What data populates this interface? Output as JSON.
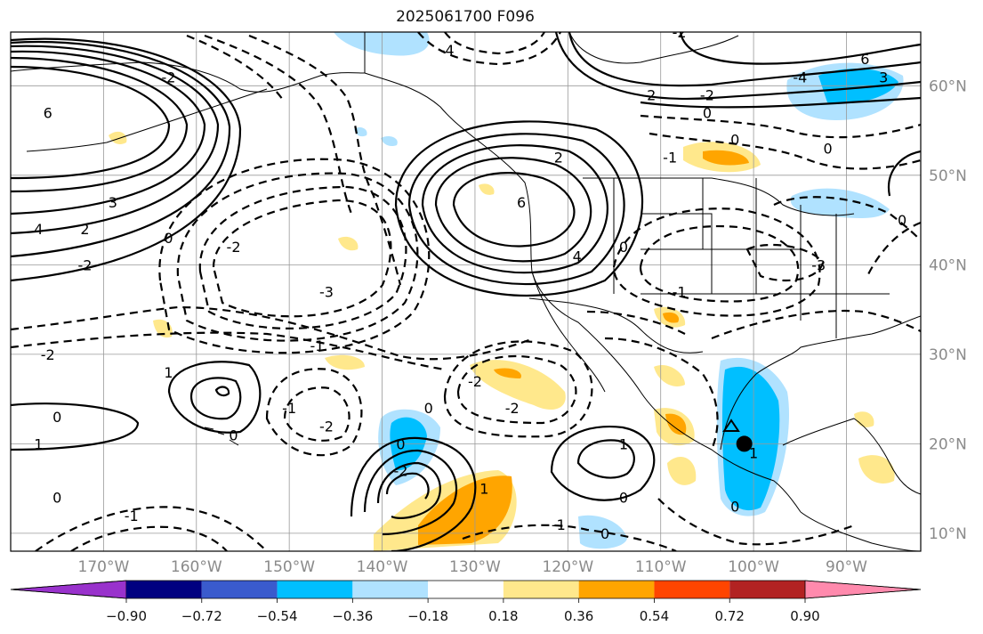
{
  "title": "2025061700 F096",
  "map": {
    "lon_range": [
      -180,
      -82
    ],
    "lat_range": [
      8,
      66
    ],
    "grid": true,
    "contour_style": "solid positive, dashed negative",
    "lon_ticks": [
      "170°W",
      "160°W",
      "150°W",
      "140°W",
      "130°W",
      "120°W",
      "110°W",
      "100°W",
      "90°W"
    ],
    "lat_ticks": [
      "60°N",
      "50°N",
      "40°N",
      "30°N",
      "20°N",
      "10°N"
    ]
  },
  "contour_labels": [
    {
      "text": "-2",
      "lon": -163,
      "lat": 61
    },
    {
      "text": "6",
      "lon": -176,
      "lat": 57
    },
    {
      "text": "4",
      "lon": -177,
      "lat": 44
    },
    {
      "text": "3",
      "lon": -169,
      "lat": 47
    },
    {
      "text": "2",
      "lon": -172,
      "lat": 44
    },
    {
      "text": "-2",
      "lon": -172,
      "lat": 40
    },
    {
      "text": "0",
      "lon": -163,
      "lat": 43
    },
    {
      "text": "-2",
      "lon": -156,
      "lat": 42
    },
    {
      "text": "-3",
      "lon": -146,
      "lat": 37
    },
    {
      "text": "-1",
      "lon": -147,
      "lat": 31
    },
    {
      "text": "-2",
      "lon": -176,
      "lat": 30
    },
    {
      "text": "-4",
      "lon": -133,
      "lat": 64
    },
    {
      "text": "6",
      "lon": -125,
      "lat": 47
    },
    {
      "text": "2",
      "lon": -121,
      "lat": 52
    },
    {
      "text": "4",
      "lon": -119,
      "lat": 41
    },
    {
      "text": "0",
      "lon": -114,
      "lat": 42
    },
    {
      "text": "-2",
      "lon": -108,
      "lat": 66
    },
    {
      "text": "2",
      "lon": -111,
      "lat": 59
    },
    {
      "text": "-2",
      "lon": -105,
      "lat": 59
    },
    {
      "text": "0",
      "lon": -105,
      "lat": 57
    },
    {
      "text": "0",
      "lon": -102,
      "lat": 54
    },
    {
      "text": "-1",
      "lon": -109,
      "lat": 52
    },
    {
      "text": "0",
      "lon": -92,
      "lat": 53
    },
    {
      "text": "-1",
      "lon": -108,
      "lat": 37
    },
    {
      "text": "-3",
      "lon": -93,
      "lat": 40
    },
    {
      "text": "6",
      "lon": -88,
      "lat": 63
    },
    {
      "text": "-4",
      "lon": -95,
      "lat": 61
    },
    {
      "text": "3",
      "lon": -86,
      "lat": 61
    },
    {
      "text": "0",
      "lon": -84,
      "lat": 45
    },
    {
      "text": "1",
      "lon": -177,
      "lat": 20
    },
    {
      "text": "0",
      "lon": -175,
      "lat": 23
    },
    {
      "text": "1",
      "lon": -163,
      "lat": 28
    },
    {
      "text": "0",
      "lon": -156,
      "lat": 21
    },
    {
      "text": "-1",
      "lon": -150,
      "lat": 24
    },
    {
      "text": "-2",
      "lon": -146,
      "lat": 22
    },
    {
      "text": "0",
      "lon": -138,
      "lat": 20
    },
    {
      "text": "-2",
      "lon": -138,
      "lat": 17
    },
    {
      "text": "0",
      "lon": -135,
      "lat": 24
    },
    {
      "text": "-2",
      "lon": -130,
      "lat": 27
    },
    {
      "text": "-2",
      "lon": -126,
      "lat": 24
    },
    {
      "text": "1",
      "lon": -129,
      "lat": 15
    },
    {
      "text": "1",
      "lon": -114,
      "lat": 20
    },
    {
      "text": "0",
      "lon": -114,
      "lat": 14
    },
    {
      "text": "0",
      "lon": -175,
      "lat": 14
    },
    {
      "text": "-1",
      "lon": -167,
      "lat": 12
    },
    {
      "text": "-1",
      "lon": -121,
      "lat": 11
    },
    {
      "text": "0",
      "lon": -116,
      "lat": 10
    },
    {
      "text": "0",
      "lon": -102,
      "lat": 13
    },
    {
      "text": "1",
      "lon": -100,
      "lat": 19
    }
  ],
  "colorbar": {
    "colors": [
      "#9932cc",
      "#000080",
      "#3a5bcd",
      "#00bfff",
      "#b0e2ff",
      "#ffffff",
      "#ffe88c",
      "#ffa500",
      "#ff4500",
      "#b22222",
      "#ff8aad"
    ],
    "labels": [
      "−0.90",
      "−0.72",
      "−0.54",
      "−0.36",
      "−0.18",
      "0.18",
      "0.36",
      "0.54",
      "0.72",
      "0.90"
    ]
  },
  "storm_marker": {
    "lon": -101,
    "lat": 20
  }
}
